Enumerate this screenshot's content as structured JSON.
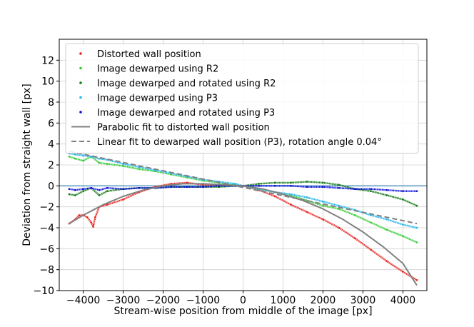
{
  "chart_data": {
    "type": "line",
    "xlabel": "Stream-wise position from middle of the image [px]",
    "ylabel": "Deviation from straight wall [px]",
    "xlim": [
      -4600,
      4600
    ],
    "ylim": [
      -10,
      14
    ],
    "xticks": [
      -4000,
      -3000,
      -2000,
      -1000,
      0,
      1000,
      2000,
      3000,
      4000
    ],
    "yticks": [
      -10,
      -8,
      -6,
      -4,
      -2,
      0,
      2,
      4,
      6,
      8,
      10,
      12
    ],
    "grid": true,
    "legend_position": "top",
    "reference_line": {
      "y": 0,
      "color": "#1f77b4"
    },
    "series": [
      {
        "name": "Distorted wall position",
        "style": "dots",
        "color": "#e8231f",
        "x": [
          -4350,
          -4200,
          -4100,
          -4000,
          -3900,
          -3800,
          -3750,
          -3700,
          -3600,
          -3400,
          -3000,
          -2600,
          -2200,
          -1800,
          -1400,
          -1000,
          -600,
          -200,
          0,
          400,
          800,
          1200,
          1600,
          2000,
          2400,
          2800,
          3200,
          3600,
          4000,
          4350
        ],
        "y": [
          -3.6,
          -3.2,
          -2.8,
          -2.8,
          -3.0,
          -3.5,
          -3.9,
          -3.0,
          -2.0,
          -1.8,
          -1.3,
          -0.6,
          -0.1,
          0.2,
          0.3,
          0.1,
          0.1,
          0.0,
          0.0,
          -0.4,
          -1.0,
          -1.8,
          -2.5,
          -3.2,
          -4.0,
          -5.0,
          -6.1,
          -7.2,
          -8.2,
          -9.0
        ]
      },
      {
        "name": "Image dewarped using R2",
        "style": "dots",
        "color": "#33cc33",
        "x": [
          -4350,
          -4200,
          -4000,
          -3800,
          -3600,
          -3400,
          -3000,
          -2600,
          -2200,
          -1800,
          -1400,
          -1000,
          -600,
          -200,
          0,
          400,
          800,
          1200,
          1600,
          2000,
          2400,
          2800,
          3200,
          3600,
          4000,
          4350
        ],
        "y": [
          2.8,
          2.6,
          2.4,
          2.8,
          2.2,
          2.1,
          1.9,
          1.6,
          1.4,
          1.1,
          0.8,
          0.5,
          0.3,
          0.1,
          0.0,
          -0.3,
          -0.6,
          -0.9,
          -1.4,
          -1.9,
          -2.2,
          -2.8,
          -3.5,
          -4.2,
          -4.8,
          -5.4
        ]
      },
      {
        "name": "Image dewarped and rotated using R2",
        "style": "dots",
        "color": "#137a13",
        "x": [
          -4350,
          -4200,
          -4000,
          -3800,
          -3600,
          -3400,
          -3000,
          -2600,
          -2200,
          -1800,
          -1400,
          -1000,
          -600,
          -200,
          0,
          400,
          800,
          1200,
          1600,
          2000,
          2400,
          2800,
          3200,
          3600,
          4000,
          4350
        ],
        "y": [
          -0.8,
          -0.9,
          -0.5,
          -0.2,
          -0.9,
          -0.5,
          -0.3,
          -0.2,
          -0.2,
          -0.1,
          -0.1,
          -0.1,
          -0.1,
          0.0,
          0.0,
          0.2,
          0.3,
          0.3,
          0.4,
          0.3,
          0.1,
          -0.3,
          -0.5,
          -0.9,
          -1.3,
          -1.9
        ]
      },
      {
        "name": "Image dewarped using P3",
        "style": "dots",
        "color": "#21b5e8",
        "x": [
          -4350,
          -4200,
          -4000,
          -3800,
          -3600,
          -3400,
          -3000,
          -2600,
          -2200,
          -1800,
          -1400,
          -1000,
          -600,
          -200,
          0,
          400,
          800,
          1200,
          1600,
          2000,
          2400,
          2800,
          3200,
          3600,
          4000,
          4350
        ],
        "y": [
          3.1,
          3.0,
          2.9,
          2.8,
          2.6,
          2.5,
          2.1,
          1.8,
          1.5,
          1.2,
          0.9,
          0.6,
          0.4,
          0.2,
          0.0,
          -0.3,
          -0.6,
          -0.8,
          -1.1,
          -1.5,
          -1.9,
          -2.3,
          -2.8,
          -3.2,
          -3.7,
          -4.0
        ]
      },
      {
        "name": "Image dewarped and rotated using P3",
        "style": "dots",
        "color": "#0b10d6",
        "x": [
          -4350,
          -4200,
          -4000,
          -3800,
          -3600,
          -3400,
          -3000,
          -2600,
          -2200,
          -1800,
          -1400,
          -1000,
          -600,
          -200,
          0,
          400,
          800,
          1200,
          1600,
          2000,
          2400,
          2800,
          3200,
          3600,
          4000,
          4350
        ],
        "y": [
          -0.3,
          -0.4,
          -0.3,
          -0.2,
          -0.4,
          -0.2,
          -0.3,
          -0.2,
          -0.2,
          -0.1,
          -0.1,
          -0.1,
          0.0,
          0.0,
          0.0,
          0.0,
          0.0,
          0.0,
          -0.1,
          -0.1,
          -0.2,
          -0.3,
          -0.3,
          -0.4,
          -0.5,
          -0.5
        ]
      },
      {
        "name": "Parabolic fit to distorted wall position",
        "style": "solid",
        "color": "#808080",
        "x": [
          -4350,
          -4000,
          -3500,
          -3000,
          -2500,
          -2000,
          -1500,
          -1000,
          -500,
          0,
          500,
          1000,
          1500,
          2000,
          2500,
          3000,
          3500,
          4000,
          4350
        ],
        "y": [
          -3.6,
          -2.8,
          -1.8,
          -1.0,
          -0.4,
          0.0,
          0.2,
          0.2,
          0.1,
          0.0,
          -0.3,
          -0.8,
          -1.4,
          -2.2,
          -3.2,
          -4.4,
          -5.8,
          -7.4,
          -9.5
        ]
      },
      {
        "name": "Linear fit to dewarped wall position (P3), rotation angle 0.04°",
        "style": "dashed",
        "color": "#808080",
        "x": [
          -4350,
          4350
        ],
        "y": [
          3.3,
          -3.6
        ]
      }
    ]
  }
}
